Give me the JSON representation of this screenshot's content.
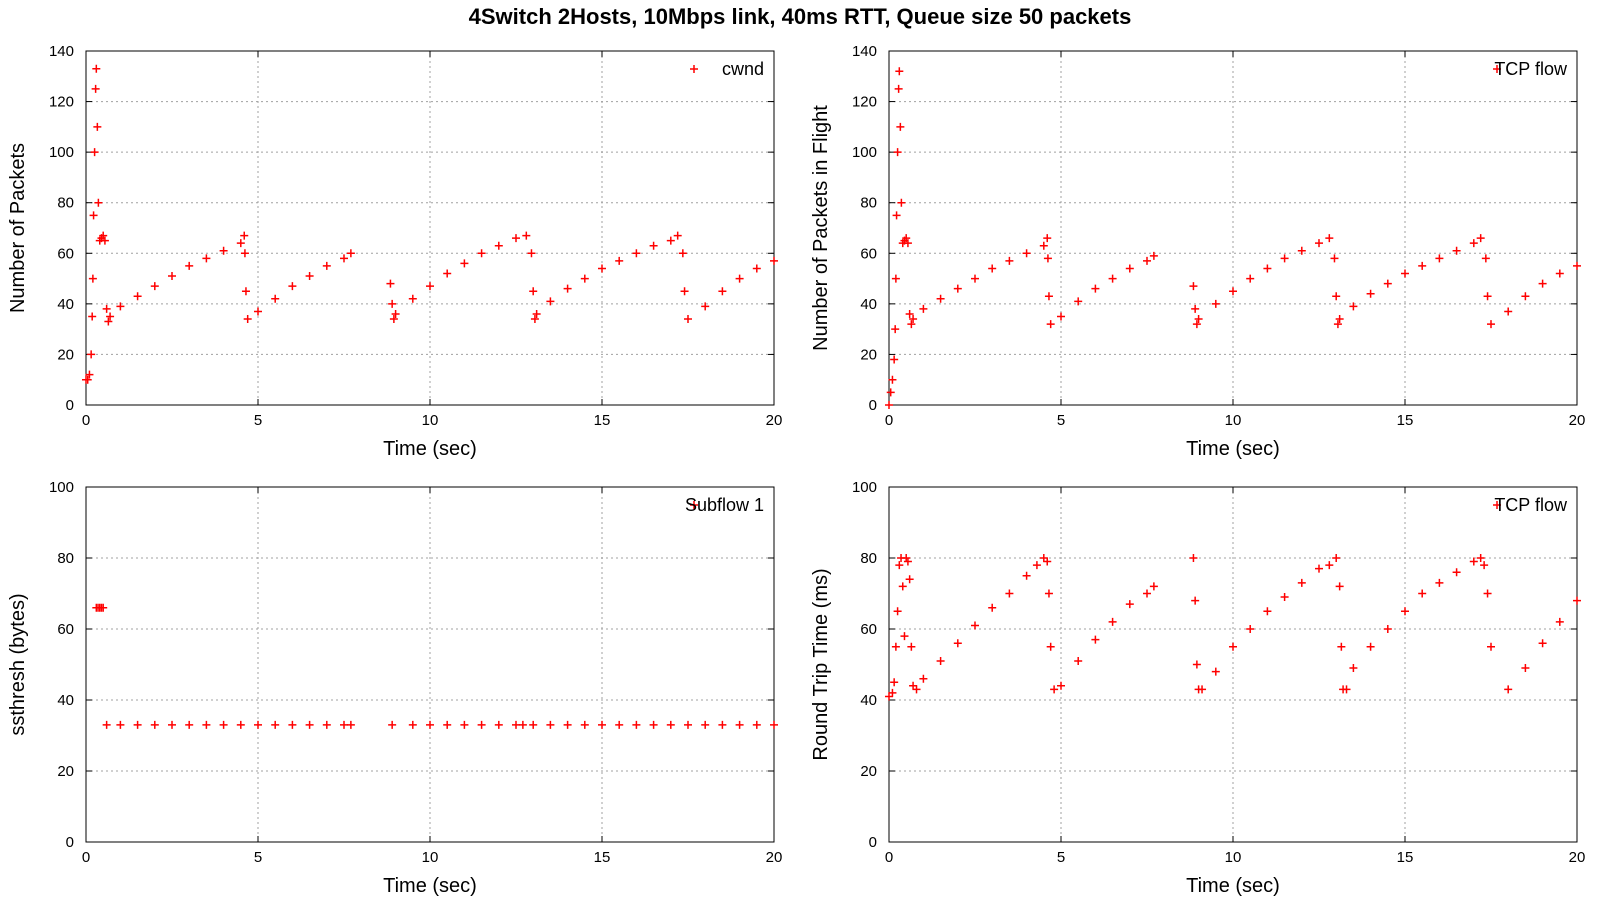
{
  "title": "4Switch 2Hosts, 10Mbps link, 40ms RTT, Queue size 50 packets",
  "style": {
    "series_color": "#ff0000",
    "grid_color": "#a0a0a0",
    "axis_color": "#000000"
  },
  "chart_data": [
    {
      "id": "cwnd",
      "type": "scatter",
      "marker": "plus",
      "xlabel": "Time (sec)",
      "ylabel": "Number of Packets",
      "xlim": [
        0,
        20
      ],
      "ylim": [
        0,
        140
      ],
      "xticks": [
        0,
        5,
        10,
        15,
        20
      ],
      "yticks": [
        0,
        20,
        40,
        60,
        80,
        100,
        120,
        140
      ],
      "xtick_labels": [
        "0",
        "5",
        "10",
        "15",
        "20"
      ],
      "ytick_labels": [
        "0",
        "20",
        "40",
        "60",
        "80",
        "100",
        "120",
        "140"
      ],
      "grid": true,
      "legend_position": "top-right",
      "series": [
        {
          "name": "cwnd",
          "color": "#ff0000",
          "x": [
            0.0,
            0.05,
            0.1,
            0.15,
            0.18,
            0.2,
            0.22,
            0.25,
            0.28,
            0.3,
            0.33,
            0.36,
            0.4,
            0.45,
            0.5,
            0.55,
            0.6,
            0.65,
            0.7,
            1.0,
            1.5,
            2.0,
            2.5,
            3.0,
            3.5,
            4.0,
            4.5,
            4.6,
            4.62,
            4.65,
            4.7,
            5.0,
            5.5,
            6.0,
            6.5,
            7.0,
            7.5,
            7.7,
            8.85,
            8.9,
            8.95,
            9.0,
            9.5,
            10.0,
            10.5,
            11.0,
            11.5,
            12.0,
            12.5,
            12.8,
            12.95,
            13.0,
            13.05,
            13.1,
            13.5,
            14.0,
            14.5,
            15.0,
            15.5,
            16.0,
            16.5,
            17.0,
            17.2,
            17.35,
            17.4,
            17.5,
            18.0,
            18.5,
            19.0,
            19.5,
            20.0
          ],
          "y": [
            10,
            10,
            12,
            20,
            35,
            50,
            75,
            100,
            125,
            133,
            110,
            80,
            65,
            66,
            67,
            65,
            38,
            33,
            35,
            39,
            43,
            47,
            51,
            55,
            58,
            61,
            64,
            67,
            60,
            45,
            34,
            37,
            42,
            47,
            51,
            55,
            58,
            60,
            48,
            40,
            34,
            36,
            42,
            47,
            52,
            56,
            60,
            63,
            66,
            67,
            60,
            45,
            34,
            36,
            41,
            46,
            50,
            54,
            57,
            60,
            63,
            65,
            67,
            60,
            45,
            34,
            39,
            45,
            50,
            54,
            57
          ]
        }
      ]
    },
    {
      "id": "inflight",
      "type": "scatter",
      "marker": "plus",
      "xlabel": "Time (sec)",
      "ylabel": "Number of Packets in Flight",
      "xlim": [
        0,
        20
      ],
      "ylim": [
        0,
        140
      ],
      "xticks": [
        0,
        5,
        10,
        15,
        20
      ],
      "yticks": [
        0,
        20,
        40,
        60,
        80,
        100,
        120,
        140
      ],
      "xtick_labels": [
        "0",
        "5",
        "10",
        "15",
        "20"
      ],
      "ytick_labels": [
        "0",
        "20",
        "40",
        "60",
        "80",
        "100",
        "120",
        "140"
      ],
      "grid": true,
      "legend_position": "top-right",
      "series": [
        {
          "name": "TCP flow",
          "color": "#ff0000",
          "x": [
            0.0,
            0.05,
            0.1,
            0.15,
            0.18,
            0.2,
            0.22,
            0.25,
            0.28,
            0.3,
            0.33,
            0.36,
            0.4,
            0.45,
            0.5,
            0.55,
            0.6,
            0.65,
            0.7,
            1.0,
            1.5,
            2.0,
            2.5,
            3.0,
            3.5,
            4.0,
            4.5,
            4.6,
            4.62,
            4.65,
            4.7,
            5.0,
            5.5,
            6.0,
            6.5,
            7.0,
            7.5,
            7.7,
            8.85,
            8.9,
            8.95,
            9.0,
            9.5,
            10.0,
            10.5,
            11.0,
            11.5,
            12.0,
            12.5,
            12.8,
            12.95,
            13.0,
            13.05,
            13.1,
            13.5,
            14.0,
            14.5,
            15.0,
            15.5,
            16.0,
            16.5,
            17.0,
            17.2,
            17.35,
            17.4,
            17.5,
            18.0,
            18.5,
            19.0,
            19.5,
            20.0
          ],
          "y": [
            0,
            5,
            10,
            18,
            30,
            50,
            75,
            100,
            125,
            132,
            110,
            80,
            64,
            65,
            66,
            64,
            36,
            32,
            34,
            38,
            42,
            46,
            50,
            54,
            57,
            60,
            63,
            66,
            58,
            43,
            32,
            35,
            41,
            46,
            50,
            54,
            57,
            59,
            47,
            38,
            32,
            34,
            40,
            45,
            50,
            54,
            58,
            61,
            64,
            66,
            58,
            43,
            32,
            34,
            39,
            44,
            48,
            52,
            55,
            58,
            61,
            64,
            66,
            58,
            43,
            32,
            37,
            43,
            48,
            52,
            55
          ]
        }
      ]
    },
    {
      "id": "ssthresh",
      "type": "scatter",
      "marker": "plus",
      "xlabel": "Time (sec)",
      "ylabel": "ssthresh (bytes)",
      "xlim": [
        0,
        20
      ],
      "ylim": [
        0,
        100
      ],
      "xticks": [
        0,
        5,
        10,
        15,
        20
      ],
      "yticks": [
        0,
        20,
        40,
        60,
        80,
        100
      ],
      "xtick_labels": [
        "0",
        "5",
        "10",
        "15",
        "20"
      ],
      "ytick_labels": [
        "0",
        "20",
        "40",
        "60",
        "80",
        "100"
      ],
      "grid": true,
      "legend_position": "top-right",
      "series": [
        {
          "name": "Subflow 1",
          "color": "#ff0000",
          "x": [
            0.3,
            0.35,
            0.4,
            0.45,
            0.5,
            0.6,
            1.0,
            1.5,
            2.0,
            2.5,
            3.0,
            3.5,
            4.0,
            4.5,
            5.0,
            5.5,
            6.0,
            6.5,
            7.0,
            7.5,
            7.7,
            8.9,
            9.5,
            10.0,
            10.5,
            11.0,
            11.5,
            12.0,
            12.5,
            12.7,
            13.0,
            13.5,
            14.0,
            14.5,
            15.0,
            15.5,
            16.0,
            16.5,
            17.0,
            17.5,
            18.0,
            18.5,
            19.0,
            19.5,
            20.0
          ],
          "y": [
            66,
            66,
            66,
            66,
            66,
            33,
            33,
            33,
            33,
            33,
            33,
            33,
            33,
            33,
            33,
            33,
            33,
            33,
            33,
            33,
            33,
            33,
            33,
            33,
            33,
            33,
            33,
            33,
            33,
            33,
            33,
            33,
            33,
            33,
            33,
            33,
            33,
            33,
            33,
            33,
            33,
            33,
            33,
            33,
            33
          ]
        }
      ]
    },
    {
      "id": "rtt",
      "type": "scatter",
      "marker": "plus",
      "xlabel": "Time (sec)",
      "ylabel": "Round Trip Time (ms)",
      "xlim": [
        0,
        20
      ],
      "ylim": [
        0,
        100
      ],
      "xticks": [
        0,
        5,
        10,
        15,
        20
      ],
      "yticks": [
        0,
        20,
        40,
        60,
        80,
        100
      ],
      "xtick_labels": [
        "0",
        "5",
        "10",
        "15",
        "20"
      ],
      "ytick_labels": [
        "0",
        "20",
        "40",
        "60",
        "80",
        "100"
      ],
      "grid": true,
      "legend_position": "top-right",
      "series": [
        {
          "name": "TCP flow",
          "color": "#ff0000",
          "x": [
            0.0,
            0.1,
            0.15,
            0.2,
            0.25,
            0.3,
            0.35,
            0.4,
            0.45,
            0.5,
            0.55,
            0.6,
            0.65,
            0.7,
            0.8,
            1.0,
            1.5,
            2.0,
            2.5,
            3.0,
            3.5,
            4.0,
            4.3,
            4.5,
            4.6,
            4.65,
            4.7,
            4.8,
            5.0,
            5.5,
            6.0,
            6.5,
            7.0,
            7.5,
            7.7,
            8.85,
            8.9,
            8.95,
            9.0,
            9.1,
            9.5,
            10.0,
            10.5,
            11.0,
            11.5,
            12.0,
            12.5,
            12.8,
            13.0,
            13.1,
            13.15,
            13.2,
            13.3,
            13.5,
            14.0,
            14.5,
            15.0,
            15.5,
            16.0,
            16.5,
            17.0,
            17.2,
            17.3,
            17.4,
            17.5,
            18.0,
            18.5,
            19.0,
            19.5,
            20.0
          ],
          "y": [
            41,
            42,
            45,
            55,
            65,
            78,
            80,
            72,
            58,
            80,
            79,
            74,
            55,
            44,
            43,
            46,
            51,
            56,
            61,
            66,
            70,
            75,
            78,
            80,
            79,
            70,
            55,
            43,
            44,
            51,
            57,
            62,
            67,
            70,
            72,
            80,
            68,
            50,
            43,
            43,
            48,
            55,
            60,
            65,
            69,
            73,
            77,
            78,
            80,
            72,
            55,
            43,
            43,
            49,
            55,
            60,
            65,
            70,
            73,
            76,
            79,
            80,
            78,
            70,
            55,
            43,
            49,
            56,
            62,
            68
          ]
        }
      ]
    }
  ]
}
